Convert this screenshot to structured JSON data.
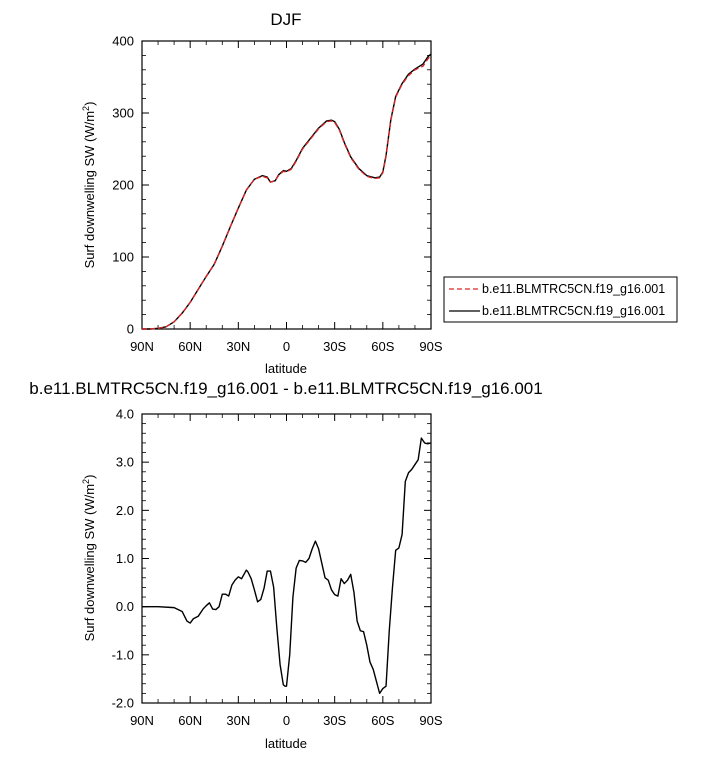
{
  "chart_data": [
    {
      "type": "line",
      "title": "DJF",
      "xlabel": "latitude",
      "ylabel_base": "Surf downwelling SW (W/m",
      "ylabel_sup": "2",
      "ylabel_tail": ")",
      "xlim": [
        -90,
        90
      ],
      "ylim": [
        0,
        400
      ],
      "x_ticks": [
        -90,
        -60,
        -30,
        0,
        30,
        60,
        90
      ],
      "x_tick_labels": [
        "90N",
        "60N",
        "30N",
        "0",
        "30S",
        "60S",
        "90S"
      ],
      "y_ticks": [
        0,
        100,
        200,
        300,
        400
      ],
      "y_tick_labels": [
        "0",
        "100",
        "200",
        "300",
        "400"
      ],
      "grid": false,
      "legend_position": "right",
      "series": [
        {
          "name": "b.e11.BLMTRC5CN.f19_g16.001",
          "color": "#d62728",
          "dash": "dashed",
          "x": [
            -90,
            -85,
            -80,
            -75,
            -70,
            -65,
            -60,
            -55,
            -50,
            -45,
            -40,
            -35,
            -30,
            -25,
            -20,
            -15,
            -12,
            -10,
            -7,
            -5,
            -2,
            0,
            3,
            6,
            10,
            15,
            20,
            25,
            28,
            30,
            33,
            36,
            40,
            45,
            50,
            55,
            58,
            60,
            62,
            65,
            68,
            72,
            76,
            80,
            85,
            88,
            90
          ],
          "y": [
            0,
            0,
            1,
            3,
            10,
            22,
            37,
            55,
            73,
            90,
            115,
            142,
            168,
            193,
            208,
            212,
            210,
            204,
            206,
            213,
            219,
            218,
            222,
            233,
            250,
            264,
            278,
            288,
            289,
            287,
            276,
            258,
            238,
            222,
            212,
            209,
            210,
            217,
            240,
            290,
            322,
            340,
            352,
            360,
            365,
            375,
            380
          ]
        },
        {
          "name": "b.e11.BLMTRC5CN.f19_g16.001",
          "color": "#000000",
          "dash": "solid",
          "x": [
            -90,
            -85,
            -80,
            -75,
            -70,
            -65,
            -60,
            -55,
            -50,
            -45,
            -40,
            -35,
            -30,
            -25,
            -20,
            -15,
            -12,
            -10,
            -7,
            -5,
            -2,
            0,
            3,
            6,
            10,
            15,
            20,
            25,
            28,
            30,
            33,
            36,
            40,
            45,
            50,
            55,
            58,
            60,
            62,
            65,
            68,
            72,
            76,
            80,
            85,
            88,
            90
          ],
          "y": [
            0,
            0,
            1,
            3,
            10,
            22,
            37,
            55,
            73,
            90,
            115,
            142,
            168,
            193,
            208,
            213,
            211,
            204,
            206,
            214,
            220,
            219,
            223,
            234,
            251,
            265,
            279,
            289,
            290,
            288,
            277,
            259,
            239,
            223,
            213,
            210,
            211,
            218,
            241,
            291,
            323,
            341,
            354,
            361,
            368,
            378,
            382
          ]
        }
      ]
    },
    {
      "type": "line",
      "title": "b.e11.BLMTRC5CN.f19_g16.001 - b.e11.BLMTRC5CN.f19_g16.001",
      "xlabel": "latitude",
      "ylabel_base": "Surf downwelling SW (W/m",
      "ylabel_sup": "2",
      "ylabel_tail": ")",
      "xlim": [
        -90,
        90
      ],
      "ylim": [
        -2.0,
        4.0
      ],
      "x_ticks": [
        -90,
        -60,
        -30,
        0,
        30,
        60,
        90
      ],
      "x_tick_labels": [
        "90N",
        "60N",
        "30N",
        "0",
        "30S",
        "60S",
        "90S"
      ],
      "y_ticks": [
        -2,
        -1,
        0,
        1,
        2,
        3,
        4
      ],
      "y_tick_labels": [
        "-2.0",
        "-1.0",
        "0.0",
        "1.0",
        "2.0",
        "3.0",
        "4.0"
      ],
      "grid": false,
      "series": [
        {
          "color": "#000000",
          "dash": "solid",
          "x": [
            -90,
            -80,
            -70,
            -65,
            -62,
            -60,
            -58,
            -55,
            -52,
            -50,
            -48,
            -46,
            -44,
            -42,
            -40,
            -38,
            -36,
            -34,
            -32,
            -30,
            -28,
            -26,
            -25,
            -24,
            -22,
            -20,
            -18,
            -16,
            -14,
            -12,
            -10,
            -8,
            -6,
            -4,
            -2,
            -1,
            0,
            2,
            4,
            6,
            8,
            10,
            12,
            14,
            16,
            18,
            20,
            22,
            24,
            26,
            28,
            30,
            32,
            34,
            36,
            38,
            40,
            42,
            44,
            46,
            48,
            50,
            52,
            54,
            56,
            58,
            60,
            62,
            64,
            66,
            68,
            70,
            72,
            74,
            76,
            78,
            80,
            82,
            84,
            86,
            88,
            89,
            90
          ],
          "y": [
            0,
            0,
            -0.02,
            -0.1,
            -0.3,
            -0.34,
            -0.25,
            -0.2,
            -0.05,
            0.02,
            0.08,
            -0.05,
            -0.06,
            0,
            0.26,
            0.26,
            0.22,
            0.45,
            0.55,
            0.62,
            0.58,
            0.7,
            0.76,
            0.72,
            0.58,
            0.35,
            0.1,
            0.15,
            0.38,
            0.74,
            0.74,
            0.4,
            -0.45,
            -1.2,
            -1.62,
            -1.65,
            -1.65,
            -1.0,
            0.2,
            0.8,
            0.96,
            0.95,
            0.92,
            1.0,
            1.2,
            1.36,
            1.2,
            0.9,
            0.6,
            0.55,
            0.35,
            0.25,
            0.22,
            0.58,
            0.48,
            0.55,
            0.67,
            0.3,
            -0.3,
            -0.5,
            -0.52,
            -0.8,
            -1.15,
            -1.3,
            -1.55,
            -1.8,
            -1.7,
            -1.65,
            -0.5,
            0.4,
            1.17,
            1.22,
            1.5,
            2.6,
            2.78,
            2.85,
            2.95,
            3.05,
            3.5,
            3.4,
            3.38,
            3.39,
            3.4
          ]
        }
      ]
    }
  ]
}
